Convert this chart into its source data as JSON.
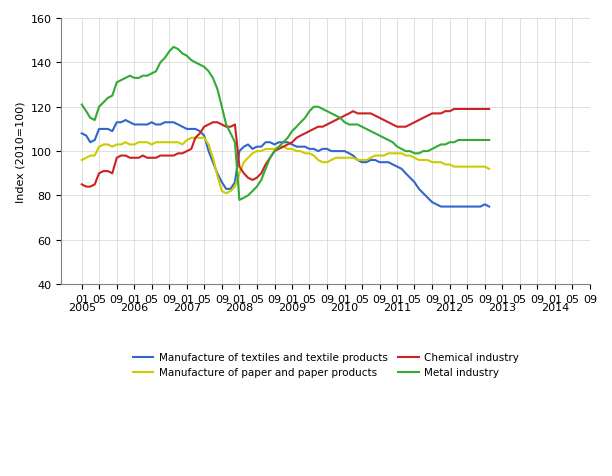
{
  "title": "",
  "ylabel": "Index (2010=100)",
  "ylim": [
    40,
    160
  ],
  "yticks": [
    40,
    60,
    80,
    100,
    120,
    140,
    160
  ],
  "colors": {
    "textiles": "#3366cc",
    "paper": "#cccc00",
    "chemical": "#cc2222",
    "metal": "#33aa33"
  },
  "legend_labels": [
    "Manufacture of textiles and textile products",
    "Manufacture of paper and paper products",
    "Chemical industry",
    "Metal industry"
  ],
  "textiles": [
    108,
    107,
    104,
    105,
    110,
    110,
    110,
    109,
    113,
    113,
    114,
    113,
    112,
    112,
    112,
    112,
    113,
    112,
    112,
    113,
    113,
    113,
    112,
    111,
    110,
    110,
    110,
    109,
    107,
    100,
    95,
    90,
    86,
    83,
    83,
    86,
    100,
    102,
    103,
    101,
    102,
    102,
    104,
    104,
    103,
    104,
    104,
    104,
    103,
    102,
    102,
    102,
    101,
    101,
    100,
    101,
    101,
    100,
    100,
    100,
    100,
    99,
    98,
    96,
    95,
    95,
    96,
    96,
    95,
    95,
    95,
    94,
    93,
    92,
    90,
    88,
    86,
    83,
    81,
    79,
    77,
    76,
    75,
    75,
    75,
    75,
    75,
    75,
    75,
    75,
    75,
    75,
    76,
    75
  ],
  "paper": [
    96,
    97,
    98,
    98,
    102,
    103,
    103,
    102,
    103,
    103,
    104,
    103,
    103,
    104,
    104,
    104,
    103,
    104,
    104,
    104,
    104,
    104,
    104,
    103,
    105,
    106,
    106,
    106,
    106,
    103,
    97,
    89,
    82,
    81,
    82,
    84,
    90,
    95,
    97,
    99,
    100,
    100,
    101,
    101,
    101,
    102,
    102,
    101,
    101,
    100,
    100,
    99,
    99,
    98,
    96,
    95,
    95,
    96,
    97,
    97,
    97,
    97,
    97,
    96,
    96,
    96,
    97,
    98,
    98,
    98,
    99,
    99,
    99,
    99,
    98,
    98,
    97,
    96,
    96,
    96,
    95,
    95,
    95,
    94,
    94,
    93,
    93,
    93,
    93,
    93,
    93,
    93,
    93,
    92
  ],
  "chemical": [
    85,
    84,
    84,
    85,
    90,
    91,
    91,
    90,
    97,
    98,
    98,
    97,
    97,
    97,
    98,
    97,
    97,
    97,
    98,
    98,
    98,
    98,
    99,
    99,
    100,
    101,
    106,
    108,
    111,
    112,
    113,
    113,
    112,
    111,
    111,
    112,
    93,
    90,
    88,
    87,
    88,
    90,
    94,
    97,
    100,
    101,
    102,
    103,
    104,
    106,
    107,
    108,
    109,
    110,
    111,
    111,
    112,
    113,
    114,
    115,
    116,
    117,
    118,
    117,
    117,
    117,
    117,
    116,
    115,
    114,
    113,
    112,
    111,
    111,
    111,
    112,
    113,
    114,
    115,
    116,
    117,
    117,
    117,
    118,
    118,
    119,
    119,
    119,
    119,
    119,
    119,
    119,
    119,
    119
  ],
  "metal": [
    121,
    118,
    115,
    114,
    120,
    122,
    124,
    125,
    131,
    132,
    133,
    134,
    133,
    133,
    134,
    134,
    135,
    136,
    140,
    142,
    145,
    147,
    146,
    144,
    143,
    141,
    140,
    139,
    138,
    136,
    133,
    128,
    120,
    112,
    108,
    104,
    78,
    79,
    80,
    82,
    84,
    87,
    92,
    97,
    100,
    102,
    104,
    106,
    109,
    111,
    113,
    115,
    118,
    120,
    120,
    119,
    118,
    117,
    116,
    115,
    113,
    112,
    112,
    112,
    111,
    110,
    109,
    108,
    107,
    106,
    105,
    104,
    102,
    101,
    100,
    100,
    99,
    99,
    100,
    100,
    101,
    102,
    103,
    103,
    104,
    104,
    105,
    105,
    105,
    105,
    105,
    105,
    105,
    105
  ],
  "n_points": 94,
  "start_year": 2005,
  "start_month": 1
}
